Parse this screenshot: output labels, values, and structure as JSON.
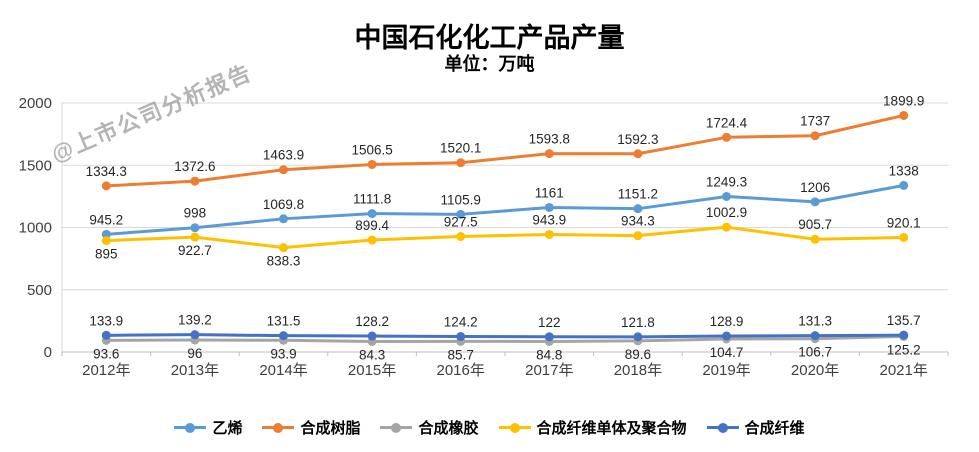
{
  "title": "中国石化化工产品产量",
  "subtitle": "单位：万吨",
  "watermark": "@上市公司分析报告",
  "chart_data": {
    "type": "line",
    "title": "中国石化化工产品产量",
    "subtitle": "单位：万吨",
    "categories": [
      "2012年",
      "2013年",
      "2014年",
      "2015年",
      "2016年",
      "2017年",
      "2018年",
      "2019年",
      "2020年",
      "2021年"
    ],
    "series": [
      {
        "name": "乙烯",
        "color": "#5B9BD5",
        "values": [
          945.2,
          998,
          1069.8,
          1111.8,
          1105.9,
          1161,
          1151.2,
          1249.3,
          1206,
          1338
        ],
        "label_position": "above"
      },
      {
        "name": "合成树脂",
        "color": "#ED7D31",
        "values": [
          1334.3,
          1372.6,
          1463.9,
          1506.5,
          1520.1,
          1593.8,
          1592.3,
          1724.4,
          1737,
          1899.9
        ],
        "label_position": "above"
      },
      {
        "name": "合成橡胶",
        "color": "#A5A5A5",
        "values": [
          93.6,
          96,
          93.9,
          84.3,
          85.7,
          84.8,
          89.6,
          104.7,
          106.7,
          125.2
        ],
        "label_position": "below"
      },
      {
        "name": "合成纤维单体及聚合物",
        "color": "#FFC000",
        "values": [
          895,
          922.7,
          838.3,
          899.4,
          927.5,
          943.9,
          934.3,
          1002.9,
          905.7,
          920.1
        ],
        "label_position": "below",
        "label_positions": [
          "below",
          "below",
          "below",
          "above",
          "above",
          "above",
          "above",
          "above",
          "above",
          "above"
        ]
      },
      {
        "name": "合成纤维",
        "color": "#4472C4",
        "values": [
          133.9,
          139.2,
          131.5,
          128.2,
          124.2,
          122,
          121.8,
          128.9,
          131.3,
          135.7
        ],
        "label_position": "above"
      }
    ],
    "ylim": [
      0,
      2000
    ],
    "yticks": [
      0,
      500,
      1000,
      1500,
      2000
    ],
    "grid": true,
    "legend_position": "bottom",
    "grid_color": "#D9D9D9",
    "axis_text_color": "#404040",
    "label_text_color": "#262626"
  }
}
